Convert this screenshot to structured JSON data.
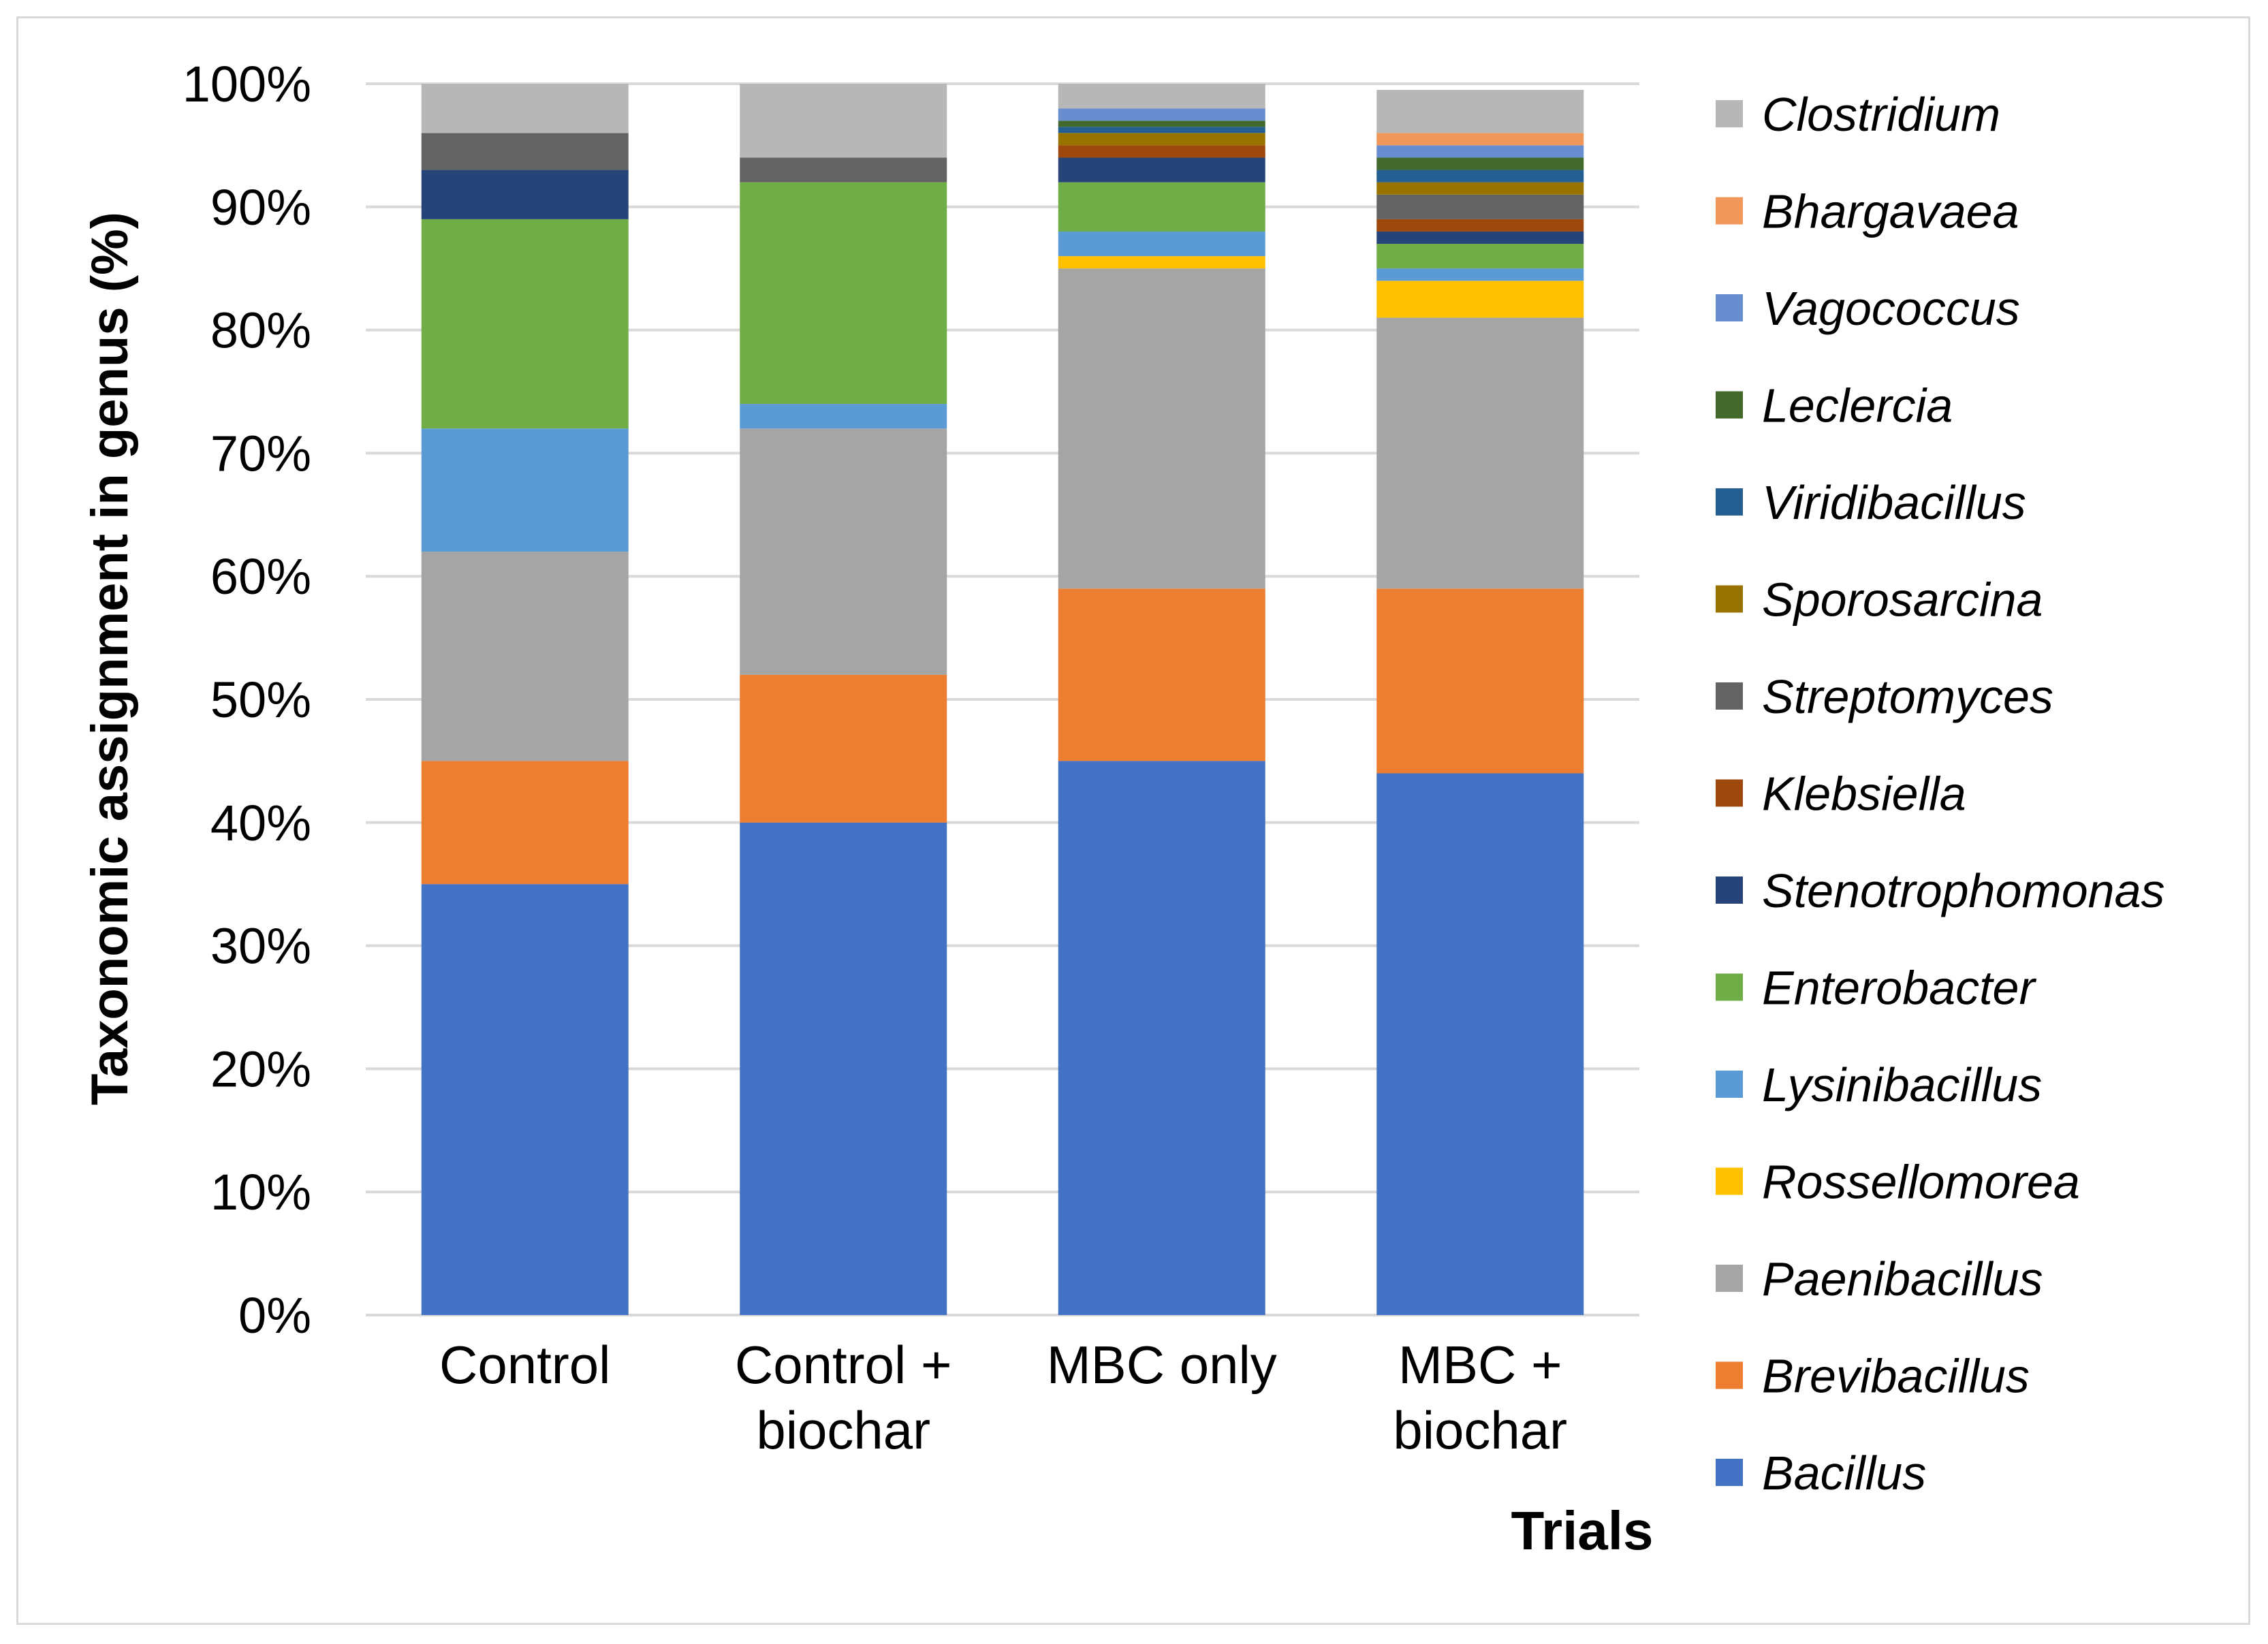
{
  "chart_data": {
    "type": "bar",
    "stacked": true,
    "xlabel": "Trials",
    "ylabel": "Taxonomic assignment in genus (%)",
    "ylim": [
      0,
      100
    ],
    "yticks": [
      "0%",
      "10%",
      "20%",
      "30%",
      "40%",
      "50%",
      "60%",
      "70%",
      "80%",
      "90%",
      "100%"
    ],
    "gridlines": true,
    "legend_position": "right",
    "categories": [
      [
        "Control"
      ],
      [
        "Control +",
        "biochar"
      ],
      [
        "MBC only"
      ],
      [
        "MBC +",
        "biochar"
      ]
    ],
    "series": [
      {
        "name": "Bacillus",
        "color": "#4472C4",
        "values": [
          35,
          40,
          45,
          44
        ]
      },
      {
        "name": "Brevibacillus",
        "color": "#ED7D31",
        "values": [
          10,
          12,
          14,
          15
        ]
      },
      {
        "name": "Paenibacillus",
        "color": "#A5A5A5",
        "values": [
          17,
          20,
          26,
          22
        ]
      },
      {
        "name": "Rossellomorea",
        "color": "#FFC000",
        "values": [
          0,
          0,
          1,
          3
        ]
      },
      {
        "name": "Lysinibacillus",
        "color": "#5B9BD5",
        "values": [
          10,
          2,
          2,
          1
        ]
      },
      {
        "name": "Enterobacter",
        "color": "#70AD47",
        "values": [
          17,
          18,
          4,
          2
        ]
      },
      {
        "name": "Stenotrophomonas",
        "color": "#264478",
        "values": [
          4,
          0,
          2,
          1
        ]
      },
      {
        "name": "Klebsiella",
        "color": "#9E480E",
        "values": [
          0,
          0,
          1,
          1
        ]
      },
      {
        "name": "Streptomyces",
        "color": "#636363",
        "values": [
          3,
          2,
          0,
          2
        ]
      },
      {
        "name": "Sporosarcina",
        "color": "#997300",
        "values": [
          0,
          0,
          1,
          1
        ]
      },
      {
        "name": "Viridibacillus",
        "color": "#255E91",
        "values": [
          0,
          0,
          0.5,
          1
        ]
      },
      {
        "name": "Leclercia",
        "color": "#43682B",
        "values": [
          0,
          0,
          0.5,
          1
        ]
      },
      {
        "name": "Vagococcus",
        "color": "#698ED0",
        "values": [
          0,
          0,
          1,
          1
        ]
      },
      {
        "name": "Bhargavaea",
        "color": "#F1975A",
        "values": [
          0,
          0,
          0,
          1
        ]
      },
      {
        "name": "Clostridium",
        "color": "#B7B7B7",
        "values": [
          4,
          6,
          2,
          3.5
        ]
      }
    ]
  }
}
